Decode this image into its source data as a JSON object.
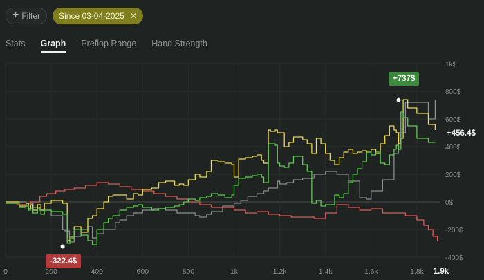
{
  "toolbar": {
    "filter_label": "Filter",
    "date_chip_label": "Since 03-04-2025"
  },
  "tabs": [
    {
      "label": "Stats",
      "active": false
    },
    {
      "label": "Graph",
      "active": true
    },
    {
      "label": "Preflop Range",
      "active": false
    },
    {
      "label": "Hand Strength",
      "active": false
    }
  ],
  "colors": {
    "background": "#1f2321",
    "chip": "#7f7f1f",
    "series_yellow": "#ecd94a",
    "series_green": "#58d04a",
    "series_red": "#e05a57",
    "series_gray": "#8e8f8f",
    "max_badge": "#3d8a3f",
    "min_badge": "#b23c3c"
  },
  "chart_data": {
    "type": "line",
    "x_ticks": [
      "0",
      "200",
      "400",
      "600",
      "800",
      "1k",
      "1.2k",
      "1.4k",
      "1.6k",
      "1.8k",
      "1.9k"
    ],
    "y_ticks": [
      "1k$",
      "800$",
      "600$",
      "400$",
      "200$",
      "0$",
      "-200$",
      "-400$"
    ],
    "xlim": [
      0,
      1900
    ],
    "ylim": [
      -400,
      1000
    ],
    "annotations": {
      "max": "+737$",
      "min": "-322.4$",
      "final": "+456.4$"
    },
    "series": [
      {
        "color": "yellow",
        "x": [
          0,
          60,
          90,
          100,
          110,
          120,
          140,
          155,
          170,
          200,
          250,
          270,
          285,
          300,
          330,
          360,
          380,
          400,
          430,
          450,
          470,
          500,
          530,
          560,
          580,
          600,
          640,
          670,
          700,
          740,
          760,
          780,
          800,
          830,
          850,
          880,
          900,
          930,
          960,
          990,
          1000,
          1020,
          1050,
          1080,
          1100,
          1120,
          1130,
          1150,
          1160,
          1180,
          1190,
          1200,
          1220,
          1240,
          1260,
          1300,
          1320,
          1340,
          1360,
          1380,
          1400,
          1420,
          1440,
          1460,
          1480,
          1500,
          1520,
          1540,
          1560,
          1580,
          1600,
          1620,
          1640,
          1660,
          1680,
          1700,
          1710,
          1720,
          1730,
          1740,
          1760,
          1800,
          1850,
          1880
        ],
        "values": [
          0,
          -30,
          -10,
          -50,
          -20,
          -60,
          -20,
          -60,
          -10,
          10,
          -10,
          -280,
          -250,
          -180,
          -220,
          -120,
          -100,
          -50,
          0,
          40,
          50,
          50,
          20,
          60,
          50,
          90,
          100,
          140,
          150,
          120,
          130,
          120,
          160,
          200,
          180,
          220,
          300,
          290,
          280,
          270,
          180,
          310,
          320,
          330,
          340,
          300,
          280,
          520,
          510,
          520,
          500,
          500,
          400,
          430,
          470,
          450,
          420,
          350,
          460,
          420,
          350,
          300,
          270,
          320,
          360,
          380,
          350,
          360,
          370,
          360,
          380,
          350,
          420,
          480,
          550,
          520,
          500,
          420,
          460,
          740,
          680,
          640,
          560,
          520
        ]
      },
      {
        "color": "green",
        "x": [
          0,
          60,
          90,
          100,
          110,
          120,
          140,
          155,
          170,
          200,
          250,
          270,
          285,
          300,
          330,
          360,
          380,
          400,
          430,
          450,
          470,
          500,
          530,
          560,
          580,
          600,
          640,
          670,
          700,
          740,
          760,
          780,
          800,
          830,
          850,
          880,
          900,
          930,
          960,
          990,
          1000,
          1020,
          1050,
          1080,
          1100,
          1120,
          1130,
          1150,
          1160,
          1180,
          1190,
          1200,
          1220,
          1240,
          1260,
          1300,
          1320,
          1340,
          1360,
          1380,
          1400,
          1420,
          1440,
          1460,
          1480,
          1500,
          1520,
          1540,
          1560,
          1580,
          1600,
          1620,
          1640,
          1660,
          1680,
          1700,
          1710,
          1720,
          1730,
          1740,
          1760,
          1800,
          1850,
          1880
        ],
        "values": [
          -10,
          -40,
          -30,
          -60,
          -50,
          -80,
          -50,
          -90,
          -60,
          -70,
          -90,
          -300,
          -260,
          -200,
          -240,
          -280,
          -310,
          -200,
          -150,
          -120,
          -100,
          -60,
          -40,
          -30,
          -20,
          -40,
          -60,
          -50,
          -40,
          -30,
          -20,
          0,
          20,
          10,
          30,
          40,
          60,
          50,
          30,
          50,
          120,
          170,
          180,
          190,
          200,
          180,
          140,
          420,
          420,
          410,
          280,
          260,
          250,
          280,
          330,
          270,
          220,
          -10,
          10,
          -30,
          -20,
          -20,
          50,
          30,
          60,
          140,
          200,
          240,
          290,
          360,
          340,
          360,
          280,
          270,
          340,
          380,
          410,
          380,
          650,
          610,
          550,
          460,
          430,
          430
        ]
      },
      {
        "color": "red",
        "x": [
          0,
          50,
          90,
          110,
          150,
          180,
          220,
          260,
          300,
          350,
          400,
          450,
          500,
          550,
          600,
          650,
          700,
          750,
          800,
          850,
          900,
          950,
          1000,
          1050,
          1100,
          1150,
          1200,
          1250,
          1300,
          1350,
          1400,
          1450,
          1500,
          1550,
          1600,
          1650,
          1700,
          1750,
          1800,
          1830,
          1850,
          1870,
          1890
        ],
        "values": [
          -10,
          -20,
          -10,
          0,
          40,
          60,
          80,
          90,
          100,
          120,
          140,
          130,
          110,
          90,
          80,
          60,
          40,
          20,
          0,
          -20,
          -40,
          -40,
          -60,
          -80,
          -70,
          -90,
          -100,
          -110,
          -110,
          -120,
          -80,
          -20,
          -40,
          -60,
          -50,
          -80,
          -80,
          -100,
          -130,
          -170,
          -200,
          -250,
          -280
        ]
      },
      {
        "color": "gray",
        "x": [
          0,
          50,
          90,
          100,
          120,
          150,
          200,
          250,
          260,
          280,
          300,
          330,
          360,
          380,
          400,
          430,
          480,
          500,
          530,
          560,
          600,
          650,
          700,
          750,
          800,
          830,
          850,
          880,
          900,
          950,
          1000,
          1030,
          1060,
          1100,
          1130,
          1150,
          1190,
          1200,
          1230,
          1260,
          1300,
          1350,
          1400,
          1450,
          1500,
          1550,
          1580,
          1600,
          1650,
          1700,
          1720,
          1750,
          1800,
          1850,
          1880
        ],
        "values": [
          0,
          0,
          -10,
          -10,
          -40,
          -60,
          -100,
          -200,
          -210,
          -290,
          -250,
          -200,
          -180,
          -260,
          -230,
          -200,
          -150,
          -130,
          -100,
          -80,
          -60,
          -50,
          -60,
          -80,
          -80,
          -100,
          -110,
          -90,
          -70,
          -30,
          -10,
          10,
          40,
          60,
          80,
          100,
          150,
          130,
          140,
          160,
          170,
          200,
          220,
          200,
          150,
          30,
          20,
          80,
          160,
          350,
          500,
          720,
          720,
          600,
          740
        ]
      }
    ]
  }
}
